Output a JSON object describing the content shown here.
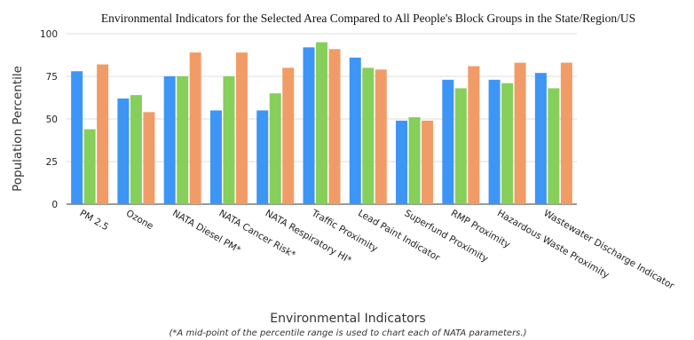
{
  "chart_data": {
    "type": "bar",
    "title": "Environmental Indicators for the Selected Area Compared to All People's Block Groups in the State/Region/US",
    "xlabel": "Environmental Indicators",
    "ylabel": "Population Percentile",
    "footnote": "(*A mid-point of the percentile range is used to chart each of NATA parameters.)",
    "ylim": [
      0,
      100
    ],
    "yticks": [
      "0",
      "25",
      "50",
      "75",
      "100"
    ],
    "grid": true,
    "categories": [
      "PM 2.5",
      "Ozone",
      "NATA Diesel PM*",
      "NATA Cancer Risk*",
      "NATA Respiratory HI*",
      "Traffic Proximity",
      "Lead Paint Indicator",
      "Superfund Proximity",
      "RMP Proximity",
      "Hazardous Waste Proximity",
      "Wastewater Discharge Indicator"
    ],
    "series": [
      {
        "color": "#3d95f5",
        "values": [
          78,
          62,
          75,
          55,
          55,
          92,
          86,
          49,
          73,
          73,
          77
        ]
      },
      {
        "color": "#86cf5a",
        "values": [
          44,
          64,
          75,
          75,
          65,
          95,
          80,
          51,
          68,
          71,
          68
        ]
      },
      {
        "color": "#f19c67",
        "values": [
          82,
          54,
          89,
          89,
          80,
          91,
          79,
          49,
          81,
          83,
          83
        ]
      }
    ]
  }
}
